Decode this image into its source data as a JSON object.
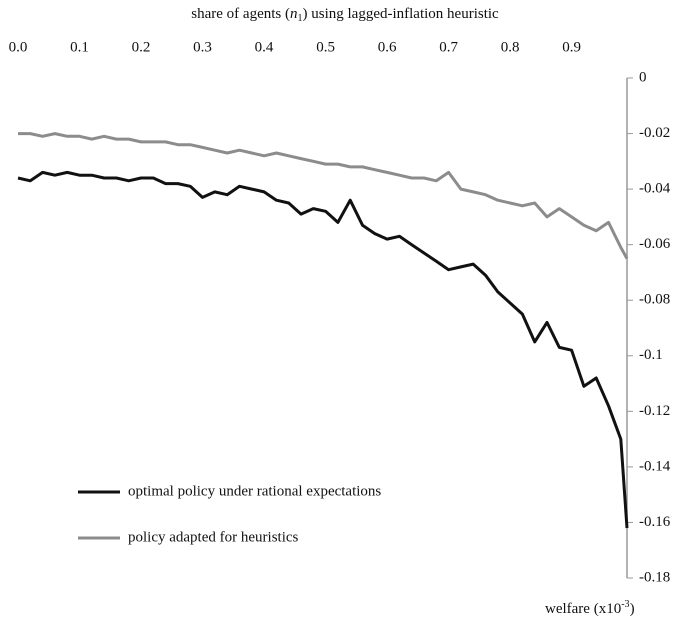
{
  "chart_data": {
    "type": "line",
    "x_label": [
      "share of agents (",
      "n",
      "1",
      ") using lagged-inflation heuristic"
    ],
    "y_label": [
      "welfare (x10",
      "-3",
      ")"
    ],
    "x": [
      0,
      0.02,
      0.04,
      0.06,
      0.08,
      0.1,
      0.12,
      0.14,
      0.16,
      0.18,
      0.2,
      0.22,
      0.24,
      0.26,
      0.28,
      0.3,
      0.32,
      0.34,
      0.36,
      0.38,
      0.4,
      0.42,
      0.44,
      0.46,
      0.48,
      0.5,
      0.52,
      0.54,
      0.56,
      0.58,
      0.6,
      0.62,
      0.64,
      0.66,
      0.68,
      0.7,
      0.72,
      0.74,
      0.76,
      0.78,
      0.8,
      0.82,
      0.84,
      0.86,
      0.88,
      0.9,
      0.92,
      0.94,
      0.96,
      0.98,
      0.99
    ],
    "series": [
      {
        "name": "optimal policy under rational expectations",
        "color": "#111111",
        "values": [
          -0.036,
          -0.037,
          -0.034,
          -0.035,
          -0.034,
          -0.035,
          -0.035,
          -0.036,
          -0.036,
          -0.037,
          -0.036,
          -0.036,
          -0.038,
          -0.038,
          -0.039,
          -0.043,
          -0.041,
          -0.042,
          -0.039,
          -0.04,
          -0.041,
          -0.044,
          -0.045,
          -0.049,
          -0.047,
          -0.048,
          -0.052,
          -0.044,
          -0.053,
          -0.056,
          -0.058,
          -0.057,
          -0.06,
          -0.063,
          -0.066,
          -0.069,
          -0.068,
          -0.067,
          -0.071,
          -0.077,
          -0.081,
          -0.085,
          -0.095,
          -0.088,
          -0.097,
          -0.098,
          -0.111,
          -0.108,
          -0.118,
          -0.13,
          -0.162
        ]
      },
      {
        "name": "policy adapted for heuristics",
        "color": "#8c8c8c",
        "values": [
          -0.02,
          -0.02,
          -0.021,
          -0.02,
          -0.021,
          -0.021,
          -0.022,
          -0.021,
          -0.022,
          -0.022,
          -0.023,
          -0.023,
          -0.023,
          -0.024,
          -0.024,
          -0.025,
          -0.026,
          -0.027,
          -0.026,
          -0.027,
          -0.028,
          -0.027,
          -0.028,
          -0.029,
          -0.03,
          -0.031,
          -0.031,
          -0.032,
          -0.032,
          -0.033,
          -0.034,
          -0.035,
          -0.036,
          -0.036,
          -0.037,
          -0.034,
          -0.04,
          -0.041,
          -0.042,
          -0.044,
          -0.045,
          -0.046,
          -0.045,
          -0.05,
          -0.047,
          -0.05,
          -0.053,
          -0.055,
          -0.052,
          -0.061,
          -0.065
        ]
      }
    ],
    "xlim": [
      0,
      0.99
    ],
    "xticks": [
      {
        "value": 0,
        "label": "0.0"
      },
      0.1,
      0.2,
      0.3,
      0.4,
      0.5,
      0.6,
      0.7,
      0.8,
      0.9
    ],
    "ylim": [
      -0.18,
      0
    ],
    "yticks": [
      0,
      -0.02,
      -0.04,
      -0.06,
      -0.08,
      -0.1,
      -0.12,
      -0.14,
      -0.16,
      -0.18
    ],
    "legend": "lower left"
  }
}
